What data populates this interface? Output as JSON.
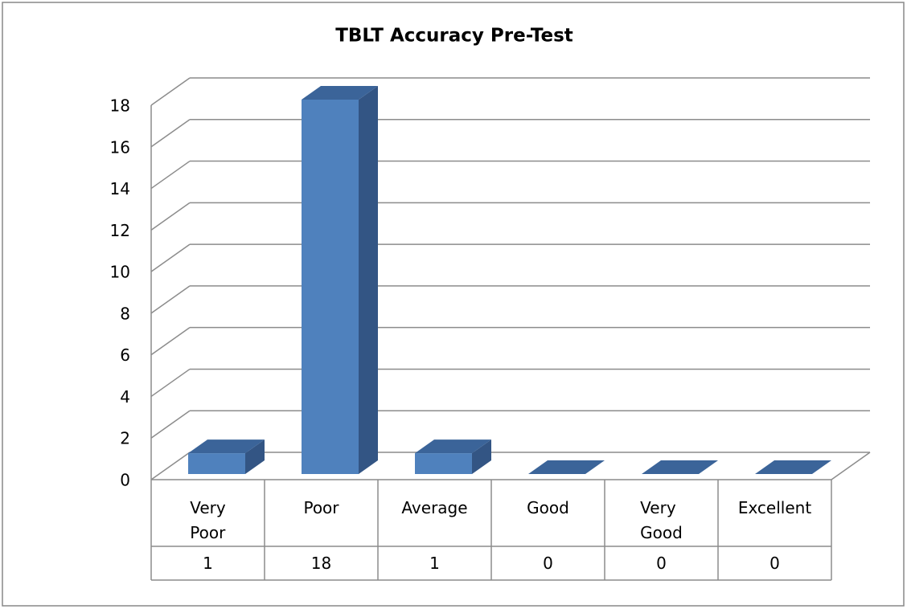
{
  "chart_data": {
    "type": "bar3d",
    "title": "TBLT Accuracy Pre-Test",
    "categories": [
      "Very Poor",
      "Poor",
      "Average",
      "Good",
      "Very Good",
      "Excellent"
    ],
    "values": [
      1,
      18,
      1,
      0,
      0,
      0
    ],
    "color": "#4f81bd",
    "ylim": [
      0,
      18
    ],
    "yticks": [
      0,
      2,
      4,
      6,
      8,
      10,
      12,
      14,
      16,
      18
    ],
    "grid": true,
    "data_table": true
  }
}
